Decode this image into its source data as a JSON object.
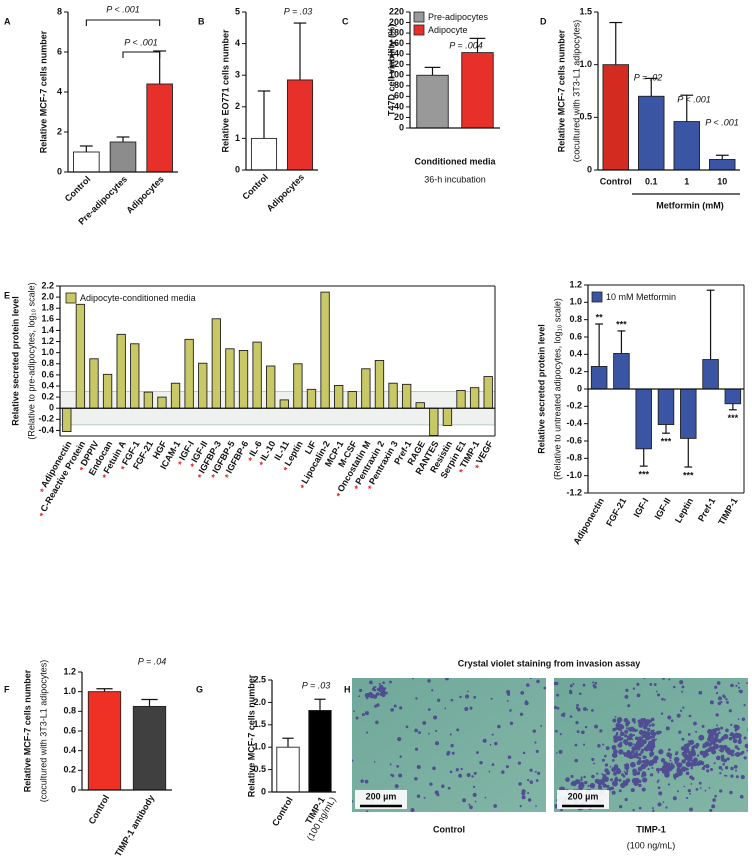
{
  "chart_data": [
    {
      "panel": "A",
      "type": "bar",
      "ylabel": "Relative MCF-7 cells number",
      "categories": [
        "Control",
        "Pre-adipocytes",
        "Adipocytes"
      ],
      "values": [
        1.0,
        1.5,
        4.4
      ],
      "errors": [
        0.3,
        0.25,
        1.65
      ],
      "colors": [
        "#ffffff",
        "#8c8c8c",
        "#e8302a"
      ],
      "ylim": [
        0,
        8
      ],
      "yticks": [
        0,
        2,
        4,
        6,
        8
      ],
      "annotations": [
        "P < .001",
        "P < .001"
      ]
    },
    {
      "panel": "B",
      "type": "bar",
      "ylabel": "Relative EO771 cells number",
      "categories": [
        "Control",
        "Adipocytes"
      ],
      "values": [
        1.0,
        2.85
      ],
      "errors": [
        1.5,
        1.8
      ],
      "colors": [
        "#ffffff",
        "#e8302a"
      ],
      "ylim": [
        0,
        5
      ],
      "yticks": [
        0,
        1,
        2,
        3,
        4,
        5
      ],
      "annotations": [
        "P = .03"
      ]
    },
    {
      "panel": "C",
      "type": "bar",
      "ylabel": "T47D cell viability (%)",
      "xlabel": "Conditioned media",
      "xlabel_note": "36-h incubation",
      "categories": [
        "Pre-adipocytes",
        "Adipocyte"
      ],
      "values": [
        100,
        143
      ],
      "errors": [
        15,
        27
      ],
      "colors": [
        "#999999",
        "#e8302a"
      ],
      "legend": "upper left",
      "ylim": [
        0,
        220
      ],
      "yticks": [
        0,
        20,
        40,
        60,
        80,
        100,
        120,
        140,
        160,
        180,
        200,
        220
      ],
      "annotations": [
        "P = .004"
      ]
    },
    {
      "panel": "D",
      "type": "bar",
      "ylabel": "Relative MCF-7 cells number",
      "ylabel_note": "(cocultured with 3T3-L1 adipocytes)",
      "xlabel": "Metformin (mM)",
      "categories": [
        "Control",
        "0.1",
        "1",
        "10"
      ],
      "values": [
        1.0,
        0.7,
        0.46,
        0.1
      ],
      "errors": [
        0.4,
        0.17,
        0.25,
        0.04
      ],
      "colors": [
        "#d42b20",
        "#3b55a5",
        "#3b55a5",
        "#3b55a5"
      ],
      "ylim": [
        0,
        1.5
      ],
      "yticks": [
        0,
        0.5,
        {
          "value": 1,
          "label": "1.0"
        },
        1.5
      ],
      "annotations": [
        "P = .02",
        "P < .001",
        "P < .001"
      ]
    },
    {
      "panel": "E",
      "type": "bar",
      "ylabel": "Relative secreted protein level",
      "ylabel_note": "(Relative to pre-adipocytes, log₁₀ scale)",
      "series_name": "Adipocyte-conditioned media",
      "color": "#c9c866",
      "legend": "upper left",
      "shaded_band": [
        -0.3,
        0.3
      ],
      "categories": [
        "Adiponectin",
        "C-Reactive Protein",
        "DPPIV",
        "Endocan",
        "Fetuin A",
        "FGF-1",
        "FGF-21",
        "HGF",
        "ICAM-1",
        "IGF-I",
        "IGF-II",
        "IGFBP-3",
        "IGFBP-5",
        "IGFBP-6",
        "IL-6",
        "IL-10",
        "IL-11",
        "Leptin",
        "LIF",
        "Lipocalin-2",
        "MCP-1",
        "M-CSF",
        "Oncostatin M",
        "Pentraxin 2",
        "Pentraxin 3",
        "Pref-1",
        "RAGE",
        "RANTES",
        "Resistin",
        "Serpin E1",
        "TIMP-1",
        "VEGF"
      ],
      "category_marks": [
        "*",
        "*",
        "*",
        null,
        "*",
        "*",
        null,
        null,
        null,
        "*",
        "*",
        "*",
        "*",
        "*",
        "*",
        "*",
        null,
        "*",
        null,
        "*",
        null,
        null,
        "*",
        "*",
        "*",
        null,
        null,
        null,
        null,
        null,
        "*",
        "*"
      ],
      "values": [
        -0.42,
        1.87,
        0.89,
        0.61,
        1.33,
        1.16,
        0.29,
        0.2,
        0.45,
        1.24,
        0.81,
        1.61,
        1.07,
        1.04,
        1.19,
        0.76,
        0.15,
        0.8,
        0.34,
        2.09,
        0.41,
        0.3,
        0.71,
        0.86,
        0.45,
        0.43,
        0.1,
        -0.49,
        -0.31,
        0.32,
        0.37,
        0.57
      ],
      "ylim": [
        -0.5,
        2.2
      ],
      "yticks": [
        -0.4,
        -0.2,
        0,
        0.2,
        0.4,
        0.6,
        0.8,
        {
          "value": 1,
          "label": "1.0"
        },
        1.2,
        1.4,
        1.6,
        1.8,
        {
          "value": 2,
          "label": "2.0"
        },
        2.2
      ]
    },
    {
      "type": "bar",
      "ylabel": "Relative secreted protein level",
      "ylabel_note": "(Relative to untreated adipocytes, log₁₀ scale)",
      "series_name": "10 mM Metformin",
      "color": "#3b55a5",
      "legend": "upper left",
      "categories": [
        "Adiponectin",
        "FGF-21",
        "IGF-I",
        "IGF-II",
        "Leptin",
        "Pref-1",
        "TIMP-1"
      ],
      "values": [
        0.26,
        0.41,
        -0.69,
        -0.41,
        -0.57,
        0.34,
        -0.17
      ],
      "errors": [
        0.49,
        0.26,
        0.2,
        0.1,
        0.33,
        0.8,
        0.07
      ],
      "bar_labels": [
        "**",
        "***",
        "***",
        "***",
        "***",
        null,
        "***"
      ],
      "ylim": [
        -1.2,
        1.2
      ],
      "yticks": [
        -1.2,
        {
          "value": -1,
          "label": "-1.0"
        },
        -0.8,
        -0.6,
        -0.4,
        -0.2,
        0,
        0.2,
        0.4,
        0.6,
        0.8,
        {
          "value": 1,
          "label": "1.0"
        },
        1.2
      ]
    },
    {
      "panel": "F",
      "type": "bar",
      "ylabel": "Relative MCF-7 cells number",
      "ylabel_note": "(cocultured with 3T3-L1 adipocytes)",
      "categories": [
        "Control",
        "Anti–TIMP-1 antibody"
      ],
      "values": [
        1.0,
        0.85
      ],
      "errors": [
        0.03,
        0.07
      ],
      "colors": [
        "#ee3124",
        "#404040"
      ],
      "ylim": [
        0,
        1.2
      ],
      "yticks": [
        0,
        0.2,
        0.4,
        0.6,
        0.8,
        {
          "value": 1,
          "label": "1.0"
        },
        1.2
      ],
      "annotations": [
        "P = .04"
      ]
    },
    {
      "panel": "G",
      "type": "bar",
      "ylabel": "Relative MCF-7 cells number",
      "categories": [
        "Control",
        "TIMP-1"
      ],
      "category_notes": [
        null,
        "(100 ng/mL)"
      ],
      "values": [
        1.0,
        1.82
      ],
      "errors": [
        0.2,
        0.25
      ],
      "colors": [
        "#ffffff",
        "#000000"
      ],
      "ylim": [
        0,
        2.5
      ],
      "yticks": [
        0,
        0.5,
        {
          "value": 1,
          "label": "1.0"
        },
        1.5,
        {
          "value": 2,
          "label": "2.0"
        },
        2.5
      ],
      "annotations": [
        "P = .03"
      ]
    }
  ],
  "panel_h": {
    "panel": "H",
    "title": "Crystal violet staining from invasion assay",
    "images": [
      {
        "label": "Control",
        "scale_bar": "200 µm"
      },
      {
        "label": "TIMP-1",
        "note": "(100 ng/mL)",
        "scale_bar": "200 µm"
      }
    ]
  }
}
